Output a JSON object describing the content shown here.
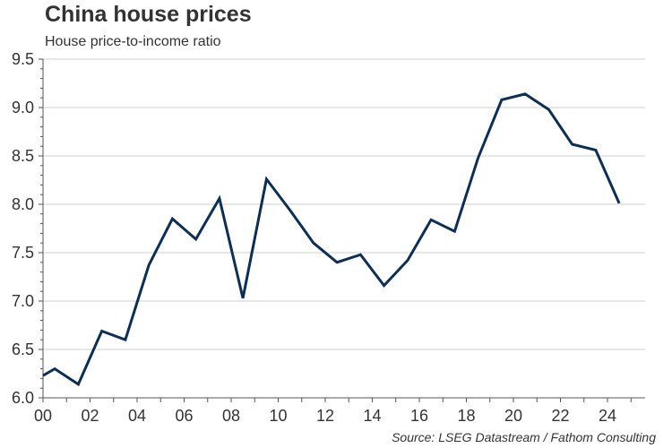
{
  "header": {
    "title": "China house prices",
    "subtitle": "House price-to-income ratio"
  },
  "footer": {
    "source": "Source: LSEG Datastream / Fathom Consulting"
  },
  "colors": {
    "line": "#0d2f55",
    "grid": "#cfcfcf",
    "axis": "#555555"
  },
  "chart_data": {
    "type": "line",
    "title": "China house prices",
    "subtitle": "House price-to-income ratio",
    "xlabel": "",
    "ylabel": "",
    "xlim": [
      2000,
      2025.6
    ],
    "ylim": [
      6.0,
      9.5
    ],
    "grid": true,
    "x_ticks": [
      {
        "value": 2000,
        "label": "00"
      },
      {
        "value": 2002,
        "label": "02"
      },
      {
        "value": 2004,
        "label": "04"
      },
      {
        "value": 2006,
        "label": "06"
      },
      {
        "value": 2008,
        "label": "08"
      },
      {
        "value": 2010,
        "label": "10"
      },
      {
        "value": 2012,
        "label": "12"
      },
      {
        "value": 2014,
        "label": "14"
      },
      {
        "value": 2016,
        "label": "16"
      },
      {
        "value": 2018,
        "label": "18"
      },
      {
        "value": 2020,
        "label": "20"
      },
      {
        "value": 2022,
        "label": "22"
      },
      {
        "value": 2024,
        "label": "24"
      }
    ],
    "y_ticks": [
      {
        "value": 6.0,
        "label": "6.0"
      },
      {
        "value": 6.5,
        "label": "6.5"
      },
      {
        "value": 7.0,
        "label": "7.0"
      },
      {
        "value": 7.5,
        "label": "7.5"
      },
      {
        "value": 8.0,
        "label": "8.0"
      },
      {
        "value": 8.5,
        "label": "8.5"
      },
      {
        "value": 9.0,
        "label": "9.0"
      },
      {
        "value": 9.5,
        "label": "9.5"
      }
    ],
    "series": [
      {
        "name": "House price-to-income ratio",
        "x": [
          2000.0,
          2000.5,
          2001.5,
          2002.5,
          2003.5,
          2004.5,
          2005.5,
          2006.5,
          2007.5,
          2008.5,
          2009.5,
          2010.5,
          2011.5,
          2012.5,
          2013.5,
          2014.5,
          2015.5,
          2016.5,
          2017.5,
          2018.5,
          2019.5,
          2020.5,
          2021.5,
          2022.5,
          2023.5,
          2024.5
        ],
        "values": [
          6.23,
          6.3,
          6.14,
          6.69,
          6.6,
          7.37,
          7.85,
          7.64,
          8.06,
          7.03,
          8.26,
          7.94,
          7.6,
          7.4,
          7.48,
          7.16,
          7.42,
          7.84,
          7.72,
          8.48,
          9.08,
          9.14,
          8.98,
          8.62,
          8.56,
          8.01
        ]
      }
    ]
  }
}
